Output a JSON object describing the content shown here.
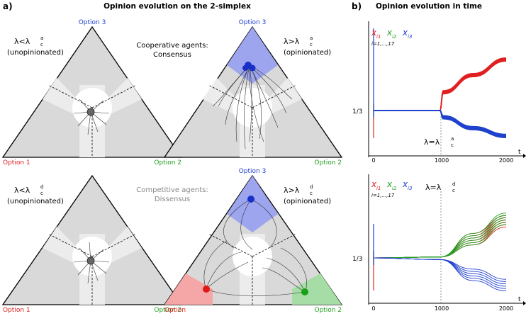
{
  "panel_a": {
    "label": "a)",
    "title": "Opinion evolution on the 2-simplex",
    "coop_line1": "Cooperative agents:",
    "coop_line2": "Consensus",
    "comp_line1": "Competitive agents:",
    "comp_line2": "Dissensus",
    "lambda_less_c": "λ<λ",
    "lambda_greater_c": "λ>λ",
    "sup_a": "a",
    "sup_d": "d",
    "sub_c": "c",
    "unopinionated": "(unopinionated)",
    "opinionated": "(opinionated)",
    "triangles": [
      {
        "top": "Option 3",
        "left": "Option 1",
        "right": "Option 2"
      },
      {
        "top": "Option 3",
        "left": "",
        "right": "Option 2"
      },
      {
        "top": "",
        "left": "Option 1",
        "right": "Option 2"
      },
      {
        "top": "Option 3",
        "left": "Option",
        "right": "Option 2"
      }
    ],
    "colors": {
      "red": "#e02020",
      "green": "#20a020",
      "blue": "#2040d0",
      "grey": "#d9d9d9",
      "light_grey": "#ececec"
    }
  },
  "panel_b": {
    "label": "b)",
    "title": "Opinion evolution in time",
    "legend_x": "x",
    "legend_sub1": "i1",
    "legend_sub2": "i2",
    "legend_sub3": "i3",
    "legend_index": "i=1,...,17",
    "y_tick": "1/3",
    "t_label": "t",
    "x_ticks": [
      "0",
      "1000",
      "2000"
    ],
    "lambda_top": "λ=λ",
    "lambda_bottom": "λ=λ",
    "sup_top": "a",
    "sup_bottom": "d",
    "sub_c": "c"
  },
  "chart_data": [
    {
      "type": "line",
      "title": "Opinion evolution in time",
      "xlabel": "t",
      "ylabel": "",
      "xlim": [
        0,
        2000
      ],
      "y_tick_labels": [
        "1/3"
      ],
      "annotation": "λ=λc^a at t=1000",
      "series": [
        {
          "name": "x_i1",
          "color": "#e02020",
          "x": [
            0,
            1000,
            1050,
            1500,
            2000
          ],
          "y": [
            0.333,
            0.333,
            0.45,
            0.56,
            0.66
          ]
        },
        {
          "name": "x_i2",
          "color": "#20a020",
          "x": [
            0,
            1000,
            1050,
            1500,
            2000
          ],
          "y": [
            0.333,
            0.333,
            0.29,
            0.22,
            0.17
          ]
        },
        {
          "name": "x_i3",
          "color": "#2040d0",
          "x": [
            0,
            1000,
            1050,
            1500,
            2000
          ],
          "y": [
            0.333,
            0.333,
            0.29,
            0.22,
            0.17
          ]
        }
      ]
    },
    {
      "type": "line",
      "title": "",
      "xlabel": "t",
      "ylabel": "",
      "xlim": [
        0,
        2000
      ],
      "y_tick_labels": [
        "1/3"
      ],
      "annotation": "λ=λc^d at t=1000",
      "series": [
        {
          "name": "x_i1",
          "color": "#e02020",
          "x": [
            0,
            1000,
            1500,
            2000
          ],
          "y": [
            0.333,
            0.34,
            0.48,
            0.62
          ]
        },
        {
          "name": "x_i2",
          "color": "#20a020",
          "x": [
            0,
            1000,
            1500,
            2000
          ],
          "y": [
            0.333,
            0.34,
            0.48,
            0.64
          ]
        },
        {
          "name": "x_i3",
          "color": "#2040d0",
          "x": [
            0,
            1000,
            1500,
            2000
          ],
          "y": [
            0.333,
            0.32,
            0.2,
            0.12
          ]
        }
      ]
    }
  ]
}
